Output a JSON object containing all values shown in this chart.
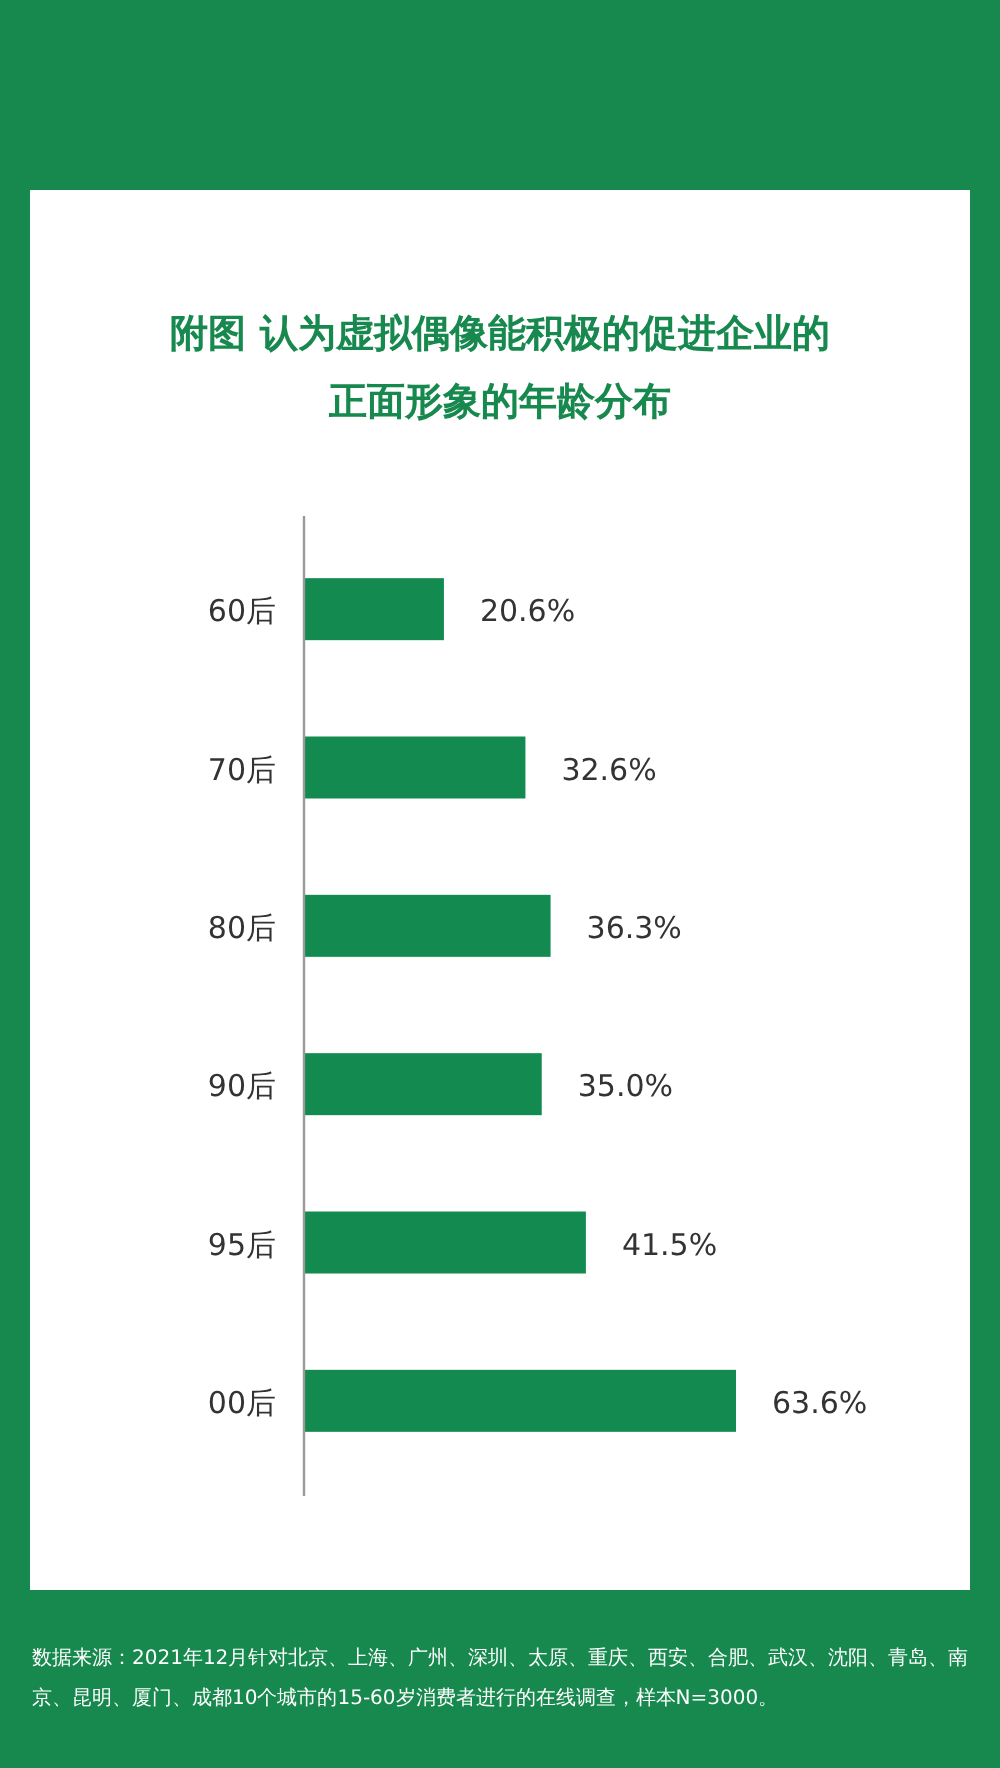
{
  "chart_data": {
    "type": "bar",
    "orientation": "horizontal",
    "title": "附图 认为虚拟偶像能积极的促进企业的正面形象的年龄分布",
    "categories": [
      "60后",
      "70后",
      "80后",
      "90后",
      "95后",
      "00后"
    ],
    "values": [
      20.6,
      32.6,
      36.3,
      35.0,
      41.5,
      63.6
    ],
    "value_labels": [
      "20.6%",
      "32.6%",
      "36.3%",
      "35.0%",
      "41.5%",
      "63.6%"
    ],
    "color": "#138a50",
    "annotations": [
      "数据来源：2021年12月针对北京、上海、广州、深圳、太原、重庆、西安、合肥、武汉、沈阳、青岛、南京、昆明、厦门、成都10个城市的15-60岁消费者进行的在线调查，样本N=3000。"
    ]
  }
}
